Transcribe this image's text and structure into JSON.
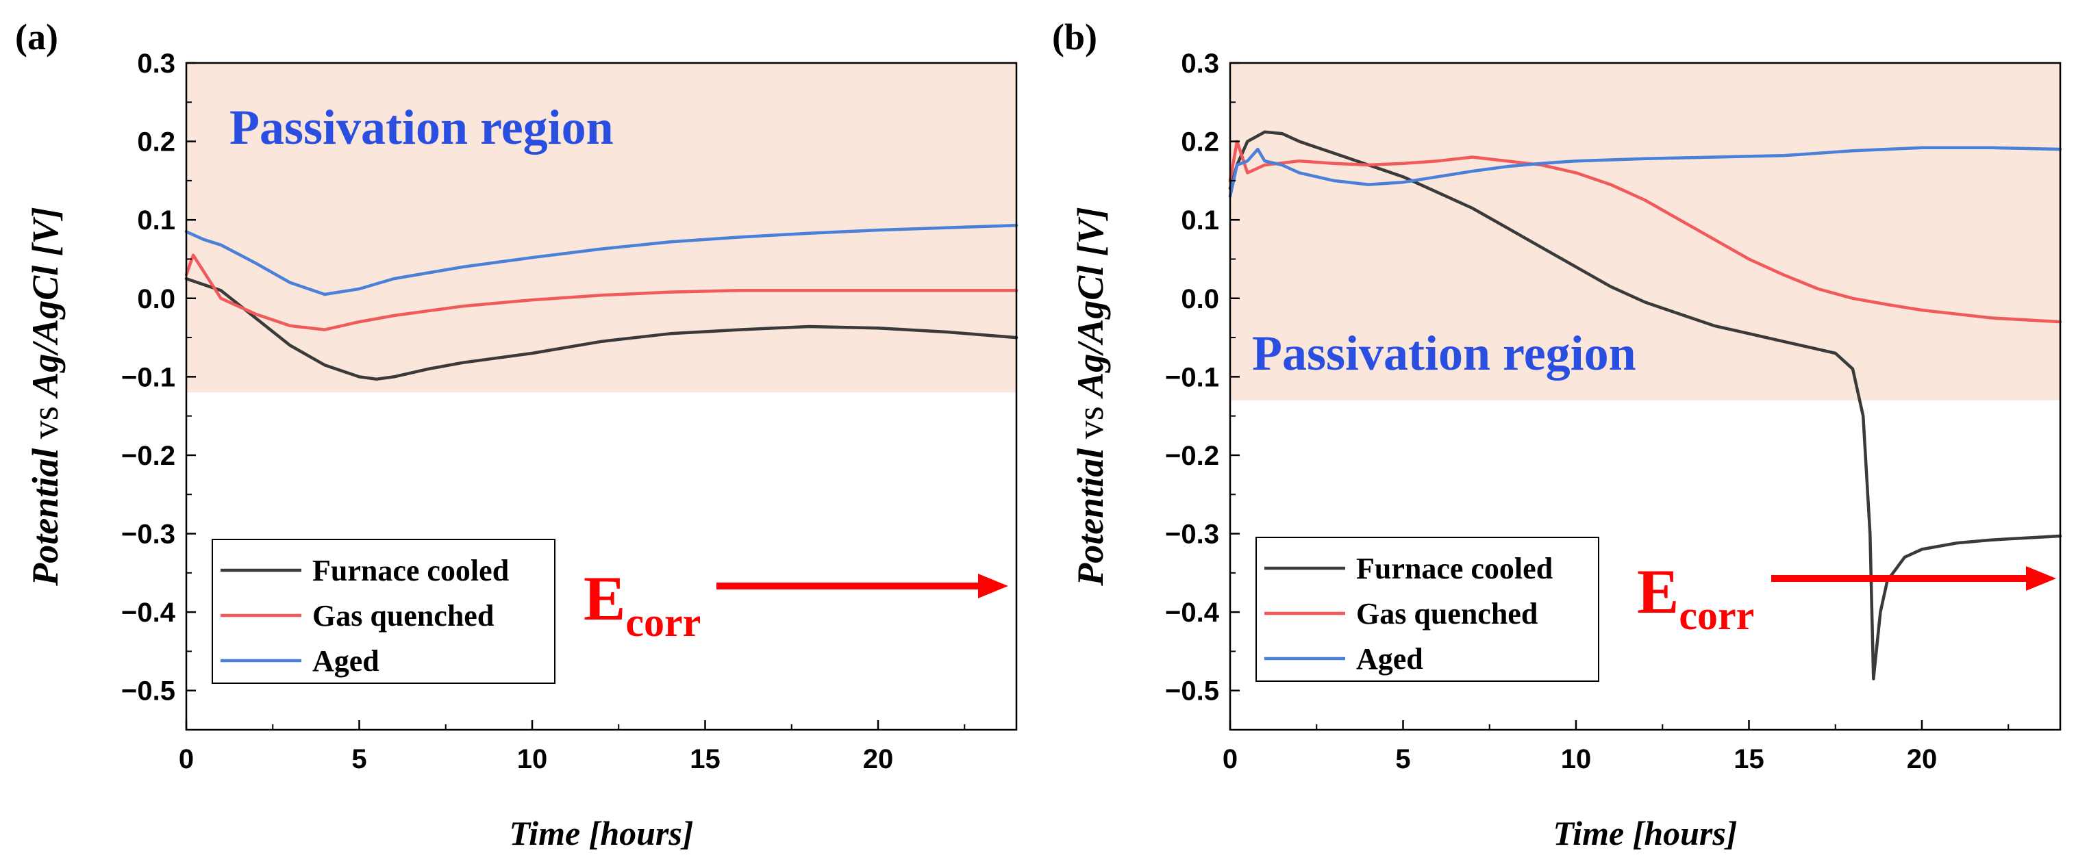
{
  "figure": {
    "x_axis_title": "Time [hours]",
    "y_axis_title_parts": [
      "Potential",
      " vs ",
      "Ag/AgCl [V]"
    ]
  },
  "colors": {
    "furnace_cooled": "#3a3a3a",
    "gas_quenched": "#f05a5a",
    "aged": "#4a80d8",
    "region_fill": "#fbe6dc",
    "region_text": "#2a4fe0",
    "arrow": "#ff0000"
  },
  "chart_data": [
    {
      "type": "line",
      "panel_label": "(a)",
      "region_label": "Passivation region",
      "region_range": [
        -0.12,
        0.3
      ],
      "annotation": {
        "main": "E",
        "sub": "corr"
      },
      "xlim": [
        0,
        24
      ],
      "ylim": [
        -0.55,
        0.3
      ],
      "x_ticks": [
        0,
        5,
        10,
        15,
        20
      ],
      "x_tick_labels": [
        "0",
        "5",
        "10",
        "15",
        "20"
      ],
      "y_ticks": [
        0.3,
        0.2,
        0.1,
        0.0,
        -0.1,
        -0.2,
        -0.3,
        -0.4,
        -0.5
      ],
      "y_tick_labels": [
        "0.3",
        "0.2",
        "0.1",
        "0.0",
        "−0.1",
        "−0.2",
        "−0.3",
        "−0.4",
        "−0.5"
      ],
      "xlabel": "Time [hours]",
      "ylabel": "Potential vs Ag/AgCl [V]",
      "series": [
        {
          "name": "Furnace cooled",
          "color_key": "furnace_cooled",
          "x": [
            0,
            1,
            2,
            3,
            4,
            5,
            5.5,
            6,
            7,
            8,
            10,
            12,
            14,
            16,
            18,
            20,
            22,
            24
          ],
          "y": [
            0.025,
            0.01,
            -0.025,
            -0.06,
            -0.085,
            -0.1,
            -0.103,
            -0.1,
            -0.09,
            -0.082,
            -0.07,
            -0.055,
            -0.045,
            -0.04,
            -0.036,
            -0.038,
            -0.043,
            -0.05
          ]
        },
        {
          "name": "Gas quenched",
          "color_key": "gas_quenched",
          "x": [
            0,
            0.2,
            1,
            2,
            3,
            4,
            5,
            6,
            8,
            10,
            12,
            14,
            16,
            18,
            20,
            22,
            24
          ],
          "y": [
            0.03,
            0.055,
            0.0,
            -0.02,
            -0.035,
            -0.04,
            -0.03,
            -0.022,
            -0.01,
            -0.002,
            0.004,
            0.008,
            0.01,
            0.01,
            0.01,
            0.01,
            0.01
          ]
        },
        {
          "name": "Aged",
          "color_key": "aged",
          "x": [
            0,
            0.5,
            1,
            2,
            3,
            4,
            5,
            6,
            8,
            10,
            12,
            14,
            16,
            18,
            20,
            22,
            24
          ],
          "y": [
            0.085,
            0.075,
            0.068,
            0.045,
            0.02,
            0.005,
            0.012,
            0.025,
            0.04,
            0.052,
            0.063,
            0.072,
            0.078,
            0.083,
            0.087,
            0.09,
            0.093
          ]
        }
      ]
    },
    {
      "type": "line",
      "panel_label": "(b)",
      "region_label": "Passivation region",
      "region_range": [
        -0.13,
        0.3
      ],
      "annotation": {
        "main": "E",
        "sub": "corr"
      },
      "xlim": [
        0,
        24
      ],
      "ylim": [
        -0.55,
        0.3
      ],
      "x_ticks": [
        0,
        5,
        10,
        15,
        20
      ],
      "x_tick_labels": [
        "0",
        "5",
        "10",
        "15",
        "20"
      ],
      "y_ticks": [
        0.3,
        0.2,
        0.1,
        0.0,
        -0.1,
        -0.2,
        -0.3,
        -0.4,
        -0.5
      ],
      "y_tick_labels": [
        "0.3",
        "0.2",
        "0.1",
        "0.0",
        "−0.1",
        "−0.2",
        "−0.3",
        "−0.4",
        "−0.5"
      ],
      "xlabel": "Time [hours]",
      "ylabel": "Potential vs Ag/AgCl [V]",
      "series": [
        {
          "name": "Furnace cooled",
          "color_key": "furnace_cooled",
          "x": [
            0,
            0.2,
            0.5,
            1,
            1.5,
            2,
            3,
            4,
            5,
            6,
            7,
            8,
            9,
            10,
            11,
            12,
            13,
            14,
            15,
            16,
            17,
            17.5,
            18,
            18.3,
            18.5,
            18.6,
            18.8,
            19,
            19.5,
            20,
            21,
            22,
            24
          ],
          "y": [
            0.14,
            0.17,
            0.2,
            0.212,
            0.21,
            0.2,
            0.185,
            0.17,
            0.155,
            0.135,
            0.115,
            0.09,
            0.065,
            0.04,
            0.015,
            -0.005,
            -0.02,
            -0.035,
            -0.045,
            -0.055,
            -0.065,
            -0.07,
            -0.09,
            -0.15,
            -0.3,
            -0.485,
            -0.4,
            -0.36,
            -0.33,
            -0.32,
            -0.312,
            -0.308,
            -0.303
          ]
        },
        {
          "name": "Gas quenched",
          "color_key": "gas_quenched",
          "x": [
            0,
            0.2,
            0.5,
            1,
            2,
            3,
            4,
            5,
            6,
            7,
            8,
            9,
            10,
            11,
            12,
            13,
            14,
            15,
            16,
            17,
            18,
            19,
            20,
            21,
            22,
            24
          ],
          "y": [
            0.15,
            0.2,
            0.16,
            0.17,
            0.175,
            0.172,
            0.17,
            0.172,
            0.175,
            0.18,
            0.175,
            0.17,
            0.16,
            0.145,
            0.125,
            0.1,
            0.075,
            0.05,
            0.03,
            0.012,
            0.0,
            -0.008,
            -0.015,
            -0.02,
            -0.025,
            -0.03
          ]
        },
        {
          "name": "Aged",
          "color_key": "aged",
          "x": [
            0,
            0.2,
            0.5,
            0.8,
            1,
            1.5,
            2,
            3,
            4,
            5,
            6,
            7,
            8,
            9,
            10,
            12,
            14,
            16,
            18,
            20,
            22,
            24
          ],
          "y": [
            0.13,
            0.17,
            0.175,
            0.19,
            0.175,
            0.17,
            0.16,
            0.15,
            0.145,
            0.148,
            0.155,
            0.162,
            0.168,
            0.172,
            0.175,
            0.178,
            0.18,
            0.182,
            0.188,
            0.192,
            0.192,
            0.19
          ]
        }
      ]
    }
  ]
}
